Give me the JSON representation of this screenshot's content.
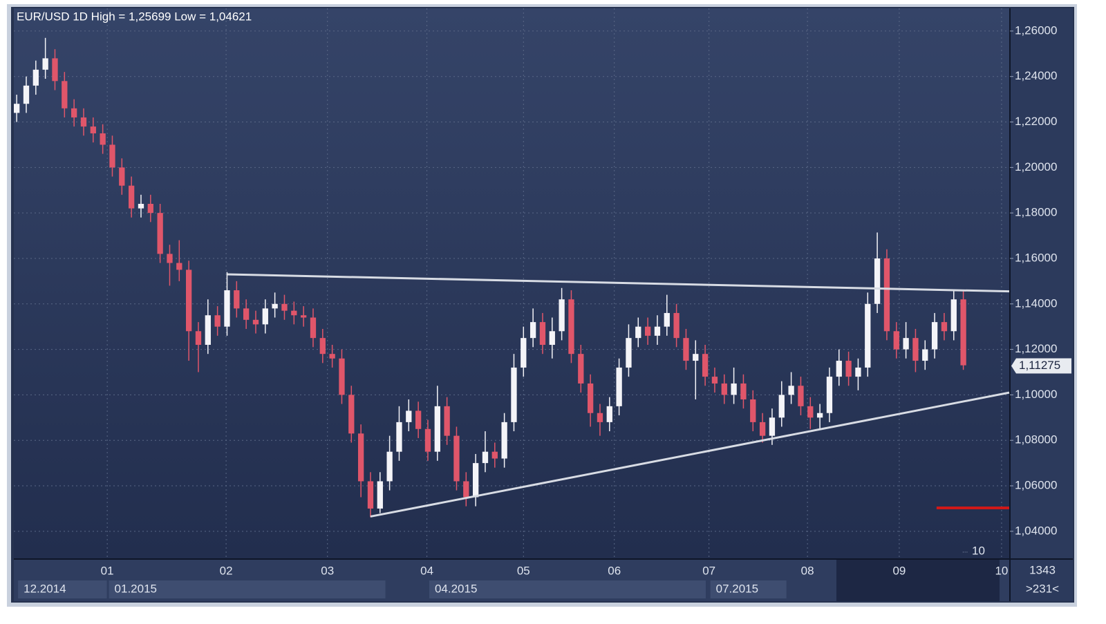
{
  "chart_data": {
    "type": "candlestick",
    "title": "EUR/USD 1D High = 1,25699 Low = 1,04621",
    "categories": [
      null,
      null,
      null,
      null,
      null,
      null,
      null,
      null,
      null,
      null,
      null,
      null,
      null,
      null,
      null,
      null,
      null,
      null,
      null,
      null,
      null,
      null,
      null,
      null,
      null,
      null,
      null,
      null,
      null,
      null,
      null,
      null,
      null,
      null,
      null,
      null,
      null,
      null,
      null,
      null,
      null,
      null,
      null,
      null,
      null,
      null,
      null,
      null,
      null,
      null,
      null,
      null,
      null,
      null,
      null,
      null,
      null,
      null,
      null,
      null,
      null,
      null,
      null,
      null,
      null,
      null,
      null,
      null,
      null,
      null,
      null,
      null,
      null,
      null,
      null,
      null,
      null,
      null,
      null,
      null,
      null,
      null,
      null,
      null,
      null,
      null,
      null,
      null,
      null,
      null,
      null,
      null,
      null,
      null,
      null,
      null,
      null,
      null,
      null,
      null
    ],
    "open": [
      1.224,
      1.228,
      1.236,
      1.243,
      1.248,
      1.238,
      1.226,
      1.222,
      1.218,
      1.215,
      1.21,
      1.2,
      1.192,
      1.182,
      1.184,
      1.18,
      1.162,
      1.158,
      1.155,
      1.128,
      1.122,
      1.135,
      1.13,
      1.146,
      1.138,
      1.133,
      1.131,
      1.138,
      1.14,
      1.137,
      1.135,
      1.134,
      1.125,
      1.118,
      1.116,
      1.1,
      1.083,
      1.062,
      1.05,
      1.062,
      1.075,
      1.088,
      1.093,
      1.085,
      1.075,
      1.095,
      1.082,
      1.062,
      1.055,
      1.07,
      1.075,
      1.072,
      1.088,
      1.112,
      1.125,
      1.132,
      1.122,
      1.128,
      1.142,
      1.118,
      1.105,
      1.092,
      1.088,
      1.095,
      1.112,
      1.125,
      1.13,
      1.126,
      1.13,
      1.136,
      1.125,
      1.115,
      1.118,
      1.108,
      1.105,
      1.1,
      1.105,
      1.098,
      1.088,
      1.082,
      1.09,
      1.1,
      1.104,
      1.095,
      1.09,
      1.092,
      1.108,
      1.115,
      1.108,
      1.112,
      1.14,
      1.16,
      1.128,
      1.12,
      1.125,
      1.115,
      1.12,
      1.132,
      1.128,
      1.142
    ],
    "high": [
      1.232,
      1.24,
      1.247,
      1.25699,
      1.252,
      1.242,
      1.23,
      1.226,
      1.222,
      1.219,
      1.214,
      1.204,
      1.196,
      1.188,
      1.188,
      1.184,
      1.166,
      1.168,
      1.159,
      1.132,
      1.142,
      1.139,
      1.154,
      1.15,
      1.142,
      1.137,
      1.142,
      1.145,
      1.144,
      1.141,
      1.139,
      1.138,
      1.129,
      1.122,
      1.12,
      1.104,
      1.087,
      1.066,
      1.066,
      1.082,
      1.095,
      1.098,
      1.097,
      1.089,
      1.104,
      1.099,
      1.086,
      1.066,
      1.074,
      1.084,
      1.079,
      1.092,
      1.118,
      1.13,
      1.138,
      1.136,
      1.134,
      1.147,
      1.146,
      1.122,
      1.109,
      1.096,
      1.099,
      1.116,
      1.131,
      1.134,
      1.134,
      1.135,
      1.144,
      1.14,
      1.129,
      1.124,
      1.122,
      1.112,
      1.109,
      1.112,
      1.109,
      1.102,
      1.092,
      1.094,
      1.106,
      1.11,
      1.108,
      1.099,
      1.096,
      1.112,
      1.12,
      1.119,
      1.116,
      1.145,
      1.1714,
      1.164,
      1.132,
      1.132,
      1.129,
      1.124,
      1.136,
      1.136,
      1.146,
      1.146
    ],
    "low": [
      1.22,
      1.224,
      1.232,
      1.239,
      1.234,
      1.222,
      1.218,
      1.214,
      1.211,
      1.206,
      1.196,
      1.188,
      1.178,
      1.178,
      1.176,
      1.158,
      1.148,
      1.15,
      1.115,
      1.11,
      1.118,
      1.126,
      1.126,
      1.134,
      1.129,
      1.127,
      1.127,
      1.134,
      1.133,
      1.131,
      1.13,
      1.121,
      1.114,
      1.112,
      1.096,
      1.079,
      1.055,
      1.04621,
      1.048,
      1.058,
      1.071,
      1.084,
      1.081,
      1.071,
      1.071,
      1.078,
      1.058,
      1.051,
      1.051,
      1.066,
      1.068,
      1.068,
      1.084,
      1.108,
      1.121,
      1.118,
      1.116,
      1.124,
      1.114,
      1.101,
      1.086,
      1.082,
      1.084,
      1.091,
      1.108,
      1.121,
      1.122,
      1.122,
      1.126,
      1.121,
      1.111,
      1.098,
      1.104,
      1.101,
      1.096,
      1.096,
      1.094,
      1.084,
      1.079,
      1.078,
      1.086,
      1.096,
      1.091,
      1.085,
      1.085,
      1.088,
      1.104,
      1.104,
      1.102,
      1.108,
      1.136,
      1.124,
      1.116,
      1.116,
      1.11,
      1.111,
      1.116,
      1.124,
      1.124,
      1.111
    ],
    "close": [
      1.228,
      1.236,
      1.243,
      1.248,
      1.238,
      1.226,
      1.222,
      1.218,
      1.215,
      1.21,
      1.2,
      1.192,
      1.182,
      1.184,
      1.18,
      1.162,
      1.158,
      1.155,
      1.128,
      1.122,
      1.135,
      1.13,
      1.146,
      1.138,
      1.133,
      1.131,
      1.138,
      1.14,
      1.137,
      1.135,
      1.134,
      1.125,
      1.118,
      1.116,
      1.1,
      1.083,
      1.062,
      1.05,
      1.062,
      1.075,
      1.088,
      1.093,
      1.085,
      1.075,
      1.095,
      1.082,
      1.062,
      1.055,
      1.07,
      1.075,
      1.072,
      1.088,
      1.112,
      1.125,
      1.132,
      1.122,
      1.128,
      1.142,
      1.118,
      1.105,
      1.092,
      1.088,
      1.095,
      1.112,
      1.125,
      1.13,
      1.126,
      1.13,
      1.136,
      1.125,
      1.115,
      1.118,
      1.108,
      1.105,
      1.1,
      1.105,
      1.098,
      1.088,
      1.082,
      1.09,
      1.1,
      1.104,
      1.095,
      1.09,
      1.092,
      1.108,
      1.115,
      1.108,
      1.112,
      1.14,
      1.16,
      1.128,
      1.12,
      1.125,
      1.115,
      1.12,
      1.132,
      1.128,
      1.142,
      1.113
    ],
    "up_color": "#f4f4f8",
    "down_color": "#e0566a",
    "xlim": [
      -0.3,
      103.8
    ],
    "ylim": [
      1.0281,
      1.27
    ],
    "yticks": [
      {
        "value": 1.04,
        "label": "1,04000"
      },
      {
        "value": 1.06,
        "label": "1,06000"
      },
      {
        "value": 1.08,
        "label": "1,08000"
      },
      {
        "value": 1.1,
        "label": "1,10000"
      },
      {
        "value": 1.12,
        "label": "1,12000"
      },
      {
        "value": 1.14,
        "label": "1,14000"
      },
      {
        "value": 1.16,
        "label": "1,16000"
      },
      {
        "value": 1.18,
        "label": "1,18000"
      },
      {
        "value": 1.2,
        "label": "1,20000"
      },
      {
        "value": 1.22,
        "label": "1,22000"
      },
      {
        "value": 1.24,
        "label": "1,24000"
      },
      {
        "value": 1.26,
        "label": "1,26000"
      }
    ],
    "xticks": [
      {
        "value": 9.47,
        "label": "01"
      },
      {
        "value": 21.9,
        "label": "02"
      },
      {
        "value": 32.5,
        "label": "03"
      },
      {
        "value": 42.9,
        "label": "04"
      },
      {
        "value": 53.0,
        "label": "05"
      },
      {
        "value": 62.5,
        "label": "06"
      },
      {
        "value": 72.4,
        "label": "07"
      },
      {
        "value": 82.7,
        "label": "08"
      },
      {
        "value": 92.3,
        "label": "09"
      },
      {
        "value": 103.0,
        "label": "10"
      }
    ],
    "period_ticks": [
      {
        "value": 0,
        "label": "12.2014"
      },
      {
        "value": 9.5,
        "label": "01.2015"
      },
      {
        "value": 43,
        "label": "04.2015"
      },
      {
        "value": 72.4,
        "label": "07.2015"
      }
    ],
    "grid": true,
    "trendlines": [
      {
        "x": [
          22,
          103.8
        ],
        "y": [
          1.153,
          1.1455
        ],
        "color": "#d8dce4"
      },
      {
        "x": [
          37,
          103.8
        ],
        "y": [
          1.0465,
          1.101
        ],
        "color": "#d8dce4"
      }
    ],
    "levels": [
      {
        "value": 1.0503,
        "x_start": 96.2,
        "color": "#d01818"
      }
    ],
    "last_price": {
      "value": 1.11275,
      "label": "1,11275"
    },
    "indicator_label": "10",
    "bar_count": "1343",
    "scroll_label": ">231<"
  }
}
